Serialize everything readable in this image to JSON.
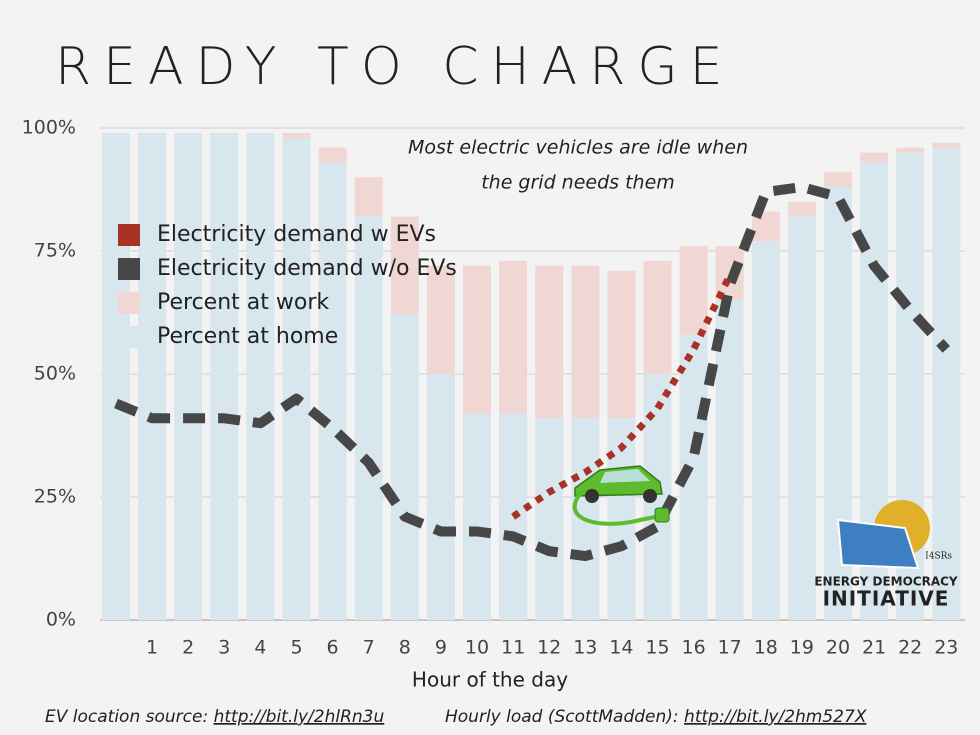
{
  "chart_data": {
    "type": "bar",
    "title": "READY TO CHARGE",
    "annotation": [
      "Most electric vehicles are idle when",
      "the grid needs them"
    ],
    "xlabel": "Hour of the day",
    "categories": [
      null,
      "1",
      "2",
      "3",
      "4",
      "5",
      "6",
      "7",
      "8",
      "9",
      "10",
      "11",
      "12",
      "13",
      "14",
      "15",
      "16",
      "17",
      "18",
      "19",
      "20",
      "21",
      "22",
      "23"
    ],
    "series": [
      {
        "name": "Electricity demand w EVs",
        "type": "line",
        "style": "dotted",
        "color": "#a93226",
        "values": [
          null,
          null,
          null,
          null,
          null,
          null,
          null,
          null,
          null,
          null,
          null,
          21,
          26,
          30,
          35,
          43,
          55,
          70,
          null,
          null,
          null,
          null,
          null,
          null
        ]
      },
      {
        "name": "Electricity demand w/o EVs",
        "type": "line",
        "style": "dashed",
        "color": "#474747",
        "values": [
          44,
          41,
          41,
          41,
          40,
          45,
          39,
          32,
          21,
          18,
          18,
          17,
          14,
          13,
          15,
          19,
          33,
          68,
          87,
          88,
          86,
          72,
          63,
          55
        ]
      },
      {
        "name": "Percent at work",
        "type": "bar",
        "color": "#f1d7d4",
        "values": [
          0,
          0,
          0,
          0,
          0,
          1,
          3,
          8,
          20,
          22,
          30,
          31,
          31,
          31,
          30,
          23,
          18,
          11,
          6,
          3,
          3,
          2,
          1,
          1
        ]
      },
      {
        "name": "Percent at home",
        "type": "bar",
        "color": "#d8e6ee",
        "values": [
          99,
          99,
          99,
          99,
          99,
          98,
          93,
          82,
          62,
          50,
          42,
          42,
          41,
          41,
          41,
          50,
          58,
          65,
          77,
          82,
          88,
          93,
          95,
          96
        ]
      }
    ],
    "stack_order": [
      3,
      2
    ],
    "ylim": [
      0,
      100
    ],
    "yticks": [
      {
        "value": 0,
        "label": "0%"
      },
      {
        "value": 25,
        "label": "25%"
      },
      {
        "value": 50,
        "label": "50%"
      },
      {
        "value": 75,
        "label": "75%"
      },
      {
        "value": 100,
        "label": "100%"
      }
    ],
    "grid": true,
    "legend": "upper left",
    "footer": {
      "left_text": "EV location source: ",
      "left_link": "http://bit.ly/2hlRn3u",
      "right_text": "Hourly load (ScottMadden): ",
      "right_link": "http://bit.ly/2hm527X"
    },
    "logo": {
      "small": "I4SRs",
      "line1": "ENERGY DEMOCRACY",
      "line2": "INITIATIVE"
    }
  }
}
